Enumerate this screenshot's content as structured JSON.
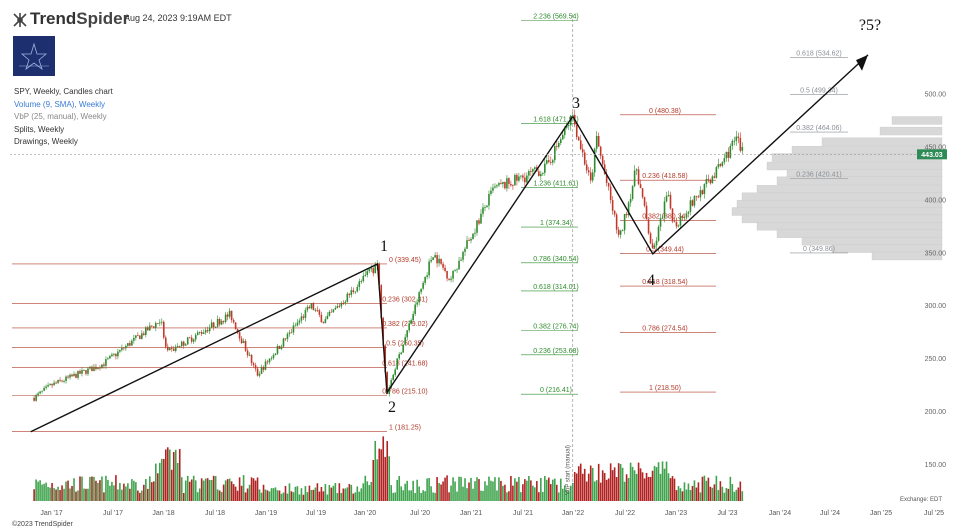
{
  "header": {
    "brand_main": "Trend",
    "brand_bold": "Spider",
    "timestamp": "Aug 24, 2023 9:19AM EDT"
  },
  "avatar": {
    "text": "TRENDSPIDER"
  },
  "legend": {
    "title": "SPY, Weekly, Candles chart",
    "volume": "Volume (9, SMA), Weekly",
    "vbp": "VbP (25, manual), Weekly",
    "splits": "Splits, Weekly",
    "drawings": "Drawings, Weekly"
  },
  "footer": {
    "copyright": "©2023 TrendSpider"
  },
  "colors": {
    "up": "#2e8b2e",
    "down": "#c0392b",
    "fib_red": "#b23a2a",
    "fib_green": "#2e8b2e",
    "fib_gray": "#8a8f95",
    "price_tag": "#2e8b57",
    "avatar": "#1d2f6f"
  },
  "chart_data": {
    "type": "candlestick",
    "symbol": "SPY",
    "timeframe": "Weekly",
    "x_labels": [
      "Jan '17",
      "Jul '17",
      "Jan '18",
      "Jul '18",
      "Jan '19",
      "Jul '19",
      "Jan '20",
      "Jul '20",
      "Jan '21",
      "Jul '21",
      "Jan '22",
      "Jul '22",
      "Jan '23",
      "Jul '23",
      "Jan '24",
      "Jul '24",
      "Jan '25",
      "Jul '25"
    ],
    "y_labels": [
      "500.00",
      "450.00",
      "400.00",
      "350.00",
      "300.00",
      "250.00",
      "200.00",
      "150.00"
    ],
    "ylim": [
      135,
      535
    ],
    "last_price": "443.03",
    "exchange_label": "Exchange: EDT",
    "vertical_marker_label": "VbP start (manual)",
    "price_path": [
      [
        "2016-11-01",
        213
      ],
      [
        "2017-01-01",
        225
      ],
      [
        "2017-07-01",
        245
      ],
      [
        "2018-01-20",
        287
      ],
      [
        "2018-02-09",
        255
      ],
      [
        "2018-09-20",
        292
      ],
      [
        "2018-12-24",
        235
      ],
      [
        "2019-07-01",
        300
      ],
      [
        "2019-08-15",
        285
      ],
      [
        "2020-02-19",
        339.45
      ],
      [
        "2020-03-23",
        218
      ],
      [
        "2020-09-01",
        350
      ],
      [
        "2020-11-01",
        325
      ],
      [
        "2021-04-01",
        410
      ],
      [
        "2021-10-01",
        430
      ],
      [
        "2022-01-04",
        479
      ],
      [
        "2022-03-08",
        415
      ],
      [
        "2022-03-29",
        458
      ],
      [
        "2022-06-17",
        362
      ],
      [
        "2022-08-16",
        430
      ],
      [
        "2022-10-12",
        349
      ],
      [
        "2022-12-01",
        405
      ],
      [
        "2022-12-28",
        376
      ],
      [
        "2023-06-01",
        430
      ],
      [
        "2023-07-31",
        458
      ],
      [
        "2023-08-24",
        443
      ]
    ],
    "elliott_waves": [
      {
        "label": "1",
        "date": "2020-02-19",
        "price": 339.45
      },
      {
        "label": "2",
        "date": "2020-03-23",
        "price": 218
      },
      {
        "label": "3",
        "date": "2022-01-04",
        "price": 479
      },
      {
        "label": "4",
        "date": "2022-10-12",
        "price": 349
      },
      {
        "label": "?5?",
        "date": "2024-12-01",
        "price": 520
      }
    ],
    "fib_sets": [
      {
        "id": "A",
        "color": "red",
        "levels": [
          {
            "label": "0 (339.45)",
            "price": 339.45
          },
          {
            "label": "0.236 (302.31)",
            "price": 302.31
          },
          {
            "label": "0.382 (279.02)",
            "price": 279.02
          },
          {
            "label": "0.5 (260.35)",
            "price": 260.35
          },
          {
            "label": "0.618 (241.68)",
            "price": 241.68
          },
          {
            "label": "0.786 (215.10)",
            "price": 215.1
          },
          {
            "label": "1 (181.25)",
            "price": 181.25
          }
        ]
      },
      {
        "id": "B",
        "color": "green",
        "levels": [
          {
            "label": "2.236 (569.54)",
            "price": 569.54
          },
          {
            "label": "1.618 (471.94)",
            "price": 471.94
          },
          {
            "label": "1.236 (411.61)",
            "price": 411.61
          },
          {
            "label": "1 (374.34)",
            "price": 374.34
          },
          {
            "label": "0.786 (340.54)",
            "price": 340.54
          },
          {
            "label": "0.618 (314.01)",
            "price": 314.01
          },
          {
            "label": "0.382 (276.74)",
            "price": 276.74
          },
          {
            "label": "0.236 (253.68)",
            "price": 253.68
          },
          {
            "label": "0 (216.41)",
            "price": 216.41
          }
        ]
      },
      {
        "id": "C",
        "color": "red",
        "levels": [
          {
            "label": "0 (480.38)",
            "price": 480.38
          },
          {
            "label": "0.236 (418.58)",
            "price": 418.58
          },
          {
            "label": "0.382 (380.34)",
            "price": 380.34
          },
          {
            "label": "0.5 (349.44)",
            "price": 349.44
          },
          {
            "label": "0.618 (318.54)",
            "price": 318.54
          },
          {
            "label": "0.786 (274.54)",
            "price": 274.54
          },
          {
            "label": "1 (218.50)",
            "price": 218.5
          }
        ]
      },
      {
        "id": "D",
        "color": "gray",
        "levels": [
          {
            "label": "0.618 (534.62)",
            "price": 534.62
          },
          {
            "label": "0.5 (499.34)",
            "price": 499.34
          },
          {
            "label": "0.382 (464.06)",
            "price": 464.06
          },
          {
            "label": "0.236 (420.41)",
            "price": 420.41
          },
          {
            "label": "0 (349.86)",
            "price": 349.86
          }
        ]
      }
    ]
  }
}
